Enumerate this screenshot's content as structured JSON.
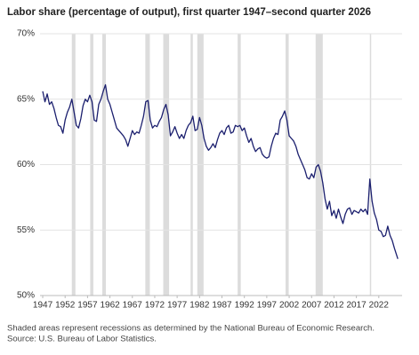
{
  "chart_data": {
    "type": "line",
    "title": "Labor share (percentage of output), first quarter 1947–second quarter 2026",
    "notes": [
      "Shaded areas represent recessions as determined by the National Bureau of Economic Research.",
      "Source: U.S. Bureau of Labor Statistics."
    ],
    "color": "#1b1f6e",
    "recession_color": "#dcdcdc",
    "grid": true,
    "xlim": [
      1946.4,
      2027.2
    ],
    "ylim": [
      50,
      70
    ],
    "xticks": [
      1947,
      1952,
      1957,
      1962,
      1967,
      1972,
      1977,
      1982,
      1987,
      1992,
      1997,
      2002,
      2007,
      2012,
      2017,
      2022
    ],
    "yticks": [
      {
        "value": 50,
        "label": "50%"
      },
      {
        "value": 55,
        "label": "55%"
      },
      {
        "value": 60,
        "label": "60%"
      },
      {
        "value": 65,
        "label": "65%"
      },
      {
        "value": 70,
        "label": "70%"
      }
    ],
    "recessions": [
      [
        1953.5,
        1954.3
      ],
      [
        1957.6,
        1958.3
      ],
      [
        1960.3,
        1961.1
      ],
      [
        1969.9,
        1970.9
      ],
      [
        1973.9,
        1975.2
      ],
      [
        1980.0,
        1980.5
      ],
      [
        1981.5,
        1982.9
      ],
      [
        1990.5,
        1991.2
      ],
      [
        2001.2,
        2001.9
      ],
      [
        2007.9,
        2009.5
      ],
      [
        2020.0,
        2020.3
      ]
    ],
    "x": [
      1947,
      1947.5,
      1948,
      1948.5,
      1949,
      1949.5,
      1950,
      1950.5,
      1951,
      1951.5,
      1952,
      1952.5,
      1953,
      1953.5,
      1954,
      1954.5,
      1955,
      1955.5,
      1956,
      1956.5,
      1957,
      1957.5,
      1958,
      1958.5,
      1959,
      1959.5,
      1960,
      1960.5,
      1961,
      1961.5,
      1962,
      1962.5,
      1963,
      1963.5,
      1964,
      1964.5,
      1965,
      1965.5,
      1966,
      1966.5,
      1967,
      1967.5,
      1968,
      1968.5,
      1969,
      1969.5,
      1970,
      1970.5,
      1971,
      1971.5,
      1972,
      1972.5,
      1973,
      1973.5,
      1974,
      1974.5,
      1975,
      1975.5,
      1976,
      1976.5,
      1977,
      1977.5,
      1978,
      1978.5,
      1979,
      1979.5,
      1980,
      1980.5,
      1981,
      1981.5,
      1982,
      1982.5,
      1983,
      1983.5,
      1984,
      1984.5,
      1985,
      1985.5,
      1986,
      1986.5,
      1987,
      1987.5,
      1988,
      1988.5,
      1989,
      1989.5,
      1990,
      1990.5,
      1991,
      1991.5,
      1992,
      1992.5,
      1993,
      1993.5,
      1994,
      1994.5,
      1995,
      1995.5,
      1996,
      1996.5,
      1997,
      1997.5,
      1998,
      1998.5,
      1999,
      1999.5,
      2000,
      2000.5,
      2001,
      2001.5,
      2002,
      2002.5,
      2003,
      2003.5,
      2004,
      2004.5,
      2005,
      2005.5,
      2006,
      2006.5,
      2007,
      2007.5,
      2008,
      2008.5,
      2009,
      2009.5,
      2010,
      2010.5,
      2011,
      2011.5,
      2012,
      2012.5,
      2013,
      2013.5,
      2014,
      2014.5,
      2015,
      2015.5,
      2016,
      2016.5,
      2017,
      2017.5,
      2018,
      2018.5,
      2019,
      2019.5,
      2020,
      2020.5,
      2021,
      2021.5,
      2022,
      2022.5,
      2023,
      2023.5,
      2024,
      2024.5,
      2025,
      2025.5,
      2026.25
    ],
    "values": [
      65.6,
      64.8,
      65.4,
      64.6,
      64.8,
      64.3,
      63.6,
      63.0,
      62.9,
      62.4,
      63.4,
      64.0,
      64.4,
      65.0,
      64.0,
      63.0,
      62.8,
      63.5,
      64.5,
      65.0,
      64.8,
      65.3,
      64.8,
      63.4,
      63.3,
      64.6,
      65.0,
      65.6,
      66.1,
      65.0,
      64.6,
      64.0,
      63.4,
      62.8,
      62.6,
      62.4,
      62.2,
      61.9,
      61.4,
      62.0,
      62.6,
      62.3,
      62.5,
      62.4,
      63.0,
      63.7,
      64.8,
      64.9,
      63.4,
      62.8,
      63.0,
      62.9,
      63.3,
      63.6,
      64.2,
      64.6,
      63.8,
      62.2,
      62.5,
      62.9,
      62.4,
      62.0,
      62.3,
      62.0,
      62.6,
      63.0,
      63.2,
      63.7,
      62.6,
      62.7,
      63.6,
      63.0,
      62.0,
      61.4,
      61.1,
      61.3,
      61.6,
      61.3,
      61.9,
      62.4,
      62.6,
      62.3,
      62.8,
      63.0,
      62.4,
      62.5,
      63.0,
      62.9,
      63.0,
      62.6,
      62.8,
      62.2,
      61.7,
      62.0,
      61.4,
      61.0,
      61.2,
      61.3,
      60.8,
      60.6,
      60.5,
      60.6,
      61.4,
      62.0,
      62.4,
      62.3,
      63.4,
      63.7,
      64.1,
      63.4,
      62.2,
      62.0,
      61.8,
      61.4,
      60.8,
      60.4,
      60.0,
      59.6,
      59.0,
      58.9,
      59.3,
      59.0,
      59.8,
      60.0,
      59.5,
      58.6,
      57.4,
      56.6,
      57.2,
      56.1,
      56.5,
      55.9,
      56.6,
      56.0,
      55.5,
      56.2,
      56.6,
      56.7,
      56.2,
      56.5,
      56.4,
      56.3,
      56.6,
      56.4,
      56.6,
      56.2,
      58.9,
      57.2,
      56.3,
      55.8,
      55.0,
      54.9,
      54.5,
      54.6,
      55.3,
      54.6,
      54.2,
      53.6,
      52.8
    ]
  }
}
